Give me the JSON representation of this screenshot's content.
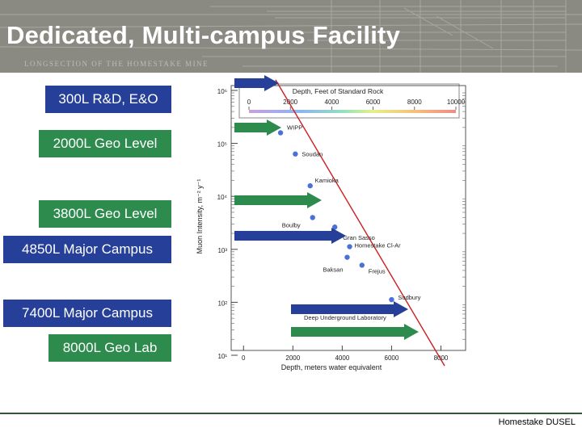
{
  "header": {
    "title": "Dedicated, Multi-campus Facility",
    "mine_caption": "LONGSECTION OF THE HOMESTAKE MINE"
  },
  "levels": [
    {
      "label": "300L R&D, E&O",
      "color": "blue"
    },
    {
      "label": "2000L Geo Level",
      "color": "green"
    },
    {
      "label": "3800L Geo Level",
      "color": "green"
    },
    {
      "label": "4850L Major Campus",
      "color": "blue"
    },
    {
      "label": "7400L Major Campus",
      "color": "blue"
    },
    {
      "label": "8000L Geo Lab",
      "color": "green"
    }
  ],
  "colors": {
    "blue": "#26409a",
    "green": "#2e8b4e",
    "header_bg": "#8a8a83",
    "curve": "#cc1f1f",
    "point": "#4a72d6"
  },
  "chart_data": {
    "type": "scatter",
    "xlabel": "Depth, meters water equivalent",
    "ylabel": "Muon Intensity, m⁻² y⁻¹",
    "xlim": [
      -500,
      9000
    ],
    "ylim": [
      1,
      6
    ],
    "y_scale": "log",
    "x_ticks": [
      "0",
      "2000",
      "4000",
      "6000",
      "8000"
    ],
    "y_ticks": [
      "10⁶",
      "10⁵",
      "10⁴",
      "10³",
      "10²",
      "10¹"
    ],
    "top_axis": {
      "label": "Depth, Feet of Standard Rock",
      "ticks": [
        "0",
        "2000",
        "4000",
        "6000",
        "8000",
        "10000"
      ]
    },
    "curve": [
      [
        1300,
        6.2
      ],
      [
        8150,
        0.8
      ]
    ],
    "points": [
      {
        "name": "WIPP",
        "x": 1500,
        "y": 5.2
      },
      {
        "name": "Soudan",
        "x": 2100,
        "y": 4.8
      },
      {
        "name": "Kamioka",
        "x": 2700,
        "y": 4.2
      },
      {
        "name": "Boulby",
        "x": 2800,
        "y": 3.6
      },
      {
        "name": "Gran Sasso",
        "x": 3700,
        "y": 3.42
      },
      {
        "name": "Homestake Cl-Ar",
        "x": 4300,
        "y": 3.05
      },
      {
        "name": "Baksan",
        "x": 4200,
        "y": 2.85
      },
      {
        "name": "Frejus",
        "x": 4800,
        "y": 2.7
      },
      {
        "name": "Sudbury",
        "x": 6000,
        "y": 2.05
      }
    ],
    "annotations": [
      "Deep Underground Laboratory"
    ]
  },
  "footer": {
    "text": "Homestake DUSEL"
  }
}
